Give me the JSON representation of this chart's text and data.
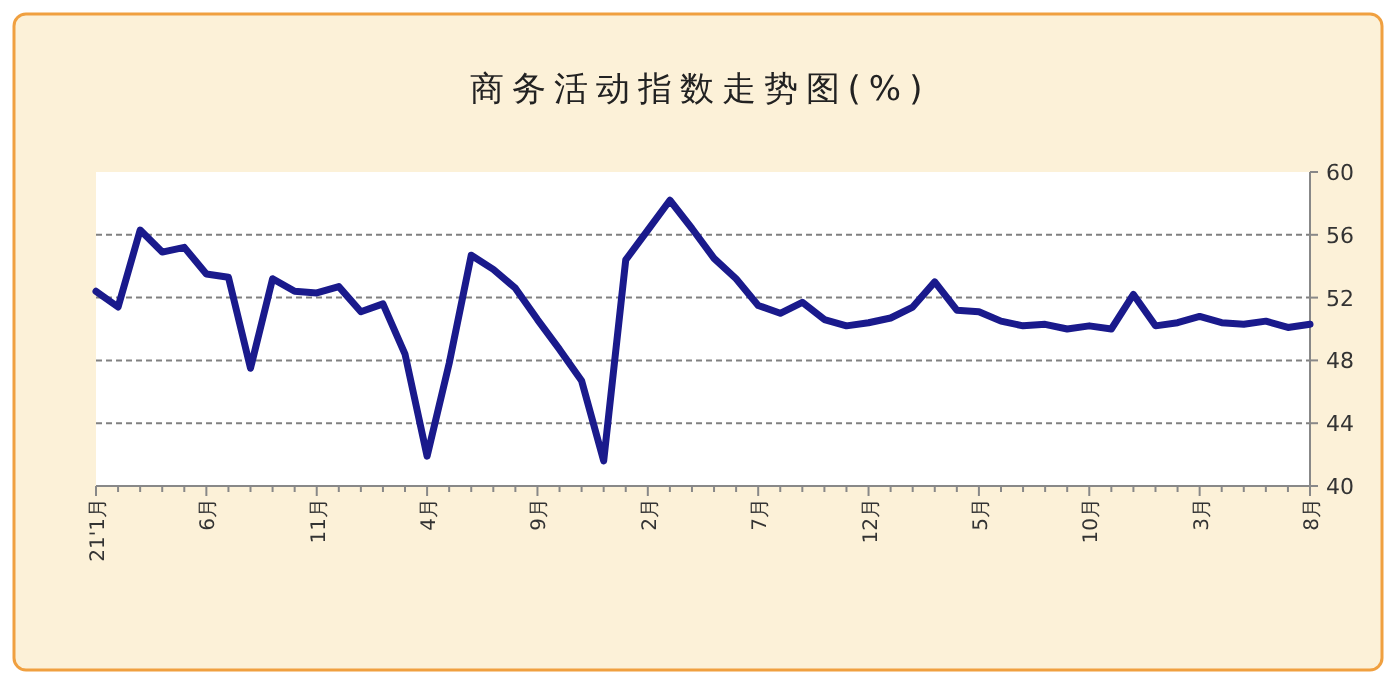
{
  "chart_data": {
    "type": "line",
    "title": "商务活动指数走势图(%)",
    "categories": [
      "21'1月",
      null,
      null,
      null,
      null,
      "6月",
      null,
      null,
      null,
      null,
      "11月",
      null,
      null,
      null,
      null,
      "4月",
      null,
      null,
      null,
      null,
      "9月",
      null,
      null,
      null,
      null,
      "2月",
      null,
      null,
      null,
      null,
      "7月",
      null,
      null,
      null,
      null,
      "12月",
      null,
      null,
      null,
      null,
      "5月",
      null,
      null,
      null,
      null,
      "10月",
      null,
      null,
      null,
      null,
      "3月",
      null,
      null,
      null,
      null,
      "8月"
    ],
    "series": [
      {
        "color": "#1a1a8c",
        "values": [
          52.4,
          51.4,
          56.3,
          54.9,
          55.2,
          53.5,
          53.3,
          47.5,
          53.2,
          52.4,
          52.3,
          52.7,
          51.1,
          51.6,
          48.4,
          41.9,
          47.8,
          54.7,
          53.8,
          52.6,
          50.6,
          48.7,
          46.7,
          41.6,
          54.4,
          56.3,
          58.2,
          56.4,
          54.5,
          53.2,
          51.5,
          51.0,
          51.7,
          50.6,
          50.2,
          50.4,
          50.7,
          51.4,
          53.0,
          51.2,
          51.1,
          50.5,
          50.2,
          50.3,
          50.0,
          50.2,
          50.0,
          52.2,
          50.2,
          50.4,
          50.8,
          50.4,
          50.3,
          50.5,
          50.1,
          50.3
        ]
      }
    ],
    "ylim": [
      40,
      60
    ],
    "yticks": [
      40,
      44,
      48,
      52,
      56,
      60
    ],
    "grid": "y",
    "line_style": "solid",
    "marker": "none"
  }
}
